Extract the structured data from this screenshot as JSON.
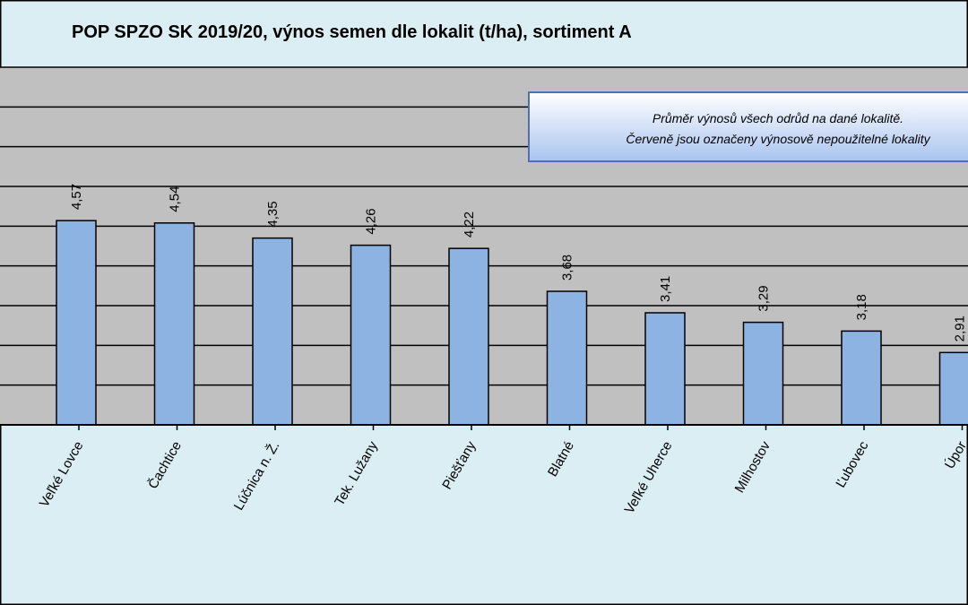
{
  "chart_data": {
    "type": "bar",
    "title": "POP SPZO SK 2019/20, výnos semen dle lokalit (t/ha), sortiment A",
    "annotation": [
      "Průměr výnosů všech odrůd na dané lokalitě.",
      "Červeně jsou označeny výnosově nepoužitelné lokality"
    ],
    "categories": [
      "Veľké Lovce",
      "Čachtice",
      "Lúčnica n. Ž.",
      "Tek. Lužany",
      "Piešťany",
      "Blatné",
      "Veľké Uherce",
      "Milhostov",
      "Ľubovec",
      "Úpor"
    ],
    "values": [
      4.57,
      4.54,
      4.35,
      4.26,
      4.22,
      3.68,
      3.41,
      3.29,
      3.18,
      2.91
    ],
    "value_labels": [
      "4,57",
      "4,54",
      "4,35",
      "4,26",
      "4,22",
      "3,68",
      "3,41",
      "3,29",
      "3,18",
      "2,91"
    ],
    "color": "#8db3e2",
    "ylim": [
      2,
      6.5
    ],
    "gridlines": [
      2.5,
      3,
      3.5,
      4,
      4.5,
      5,
      5.5,
      6
    ],
    "grid": true
  }
}
